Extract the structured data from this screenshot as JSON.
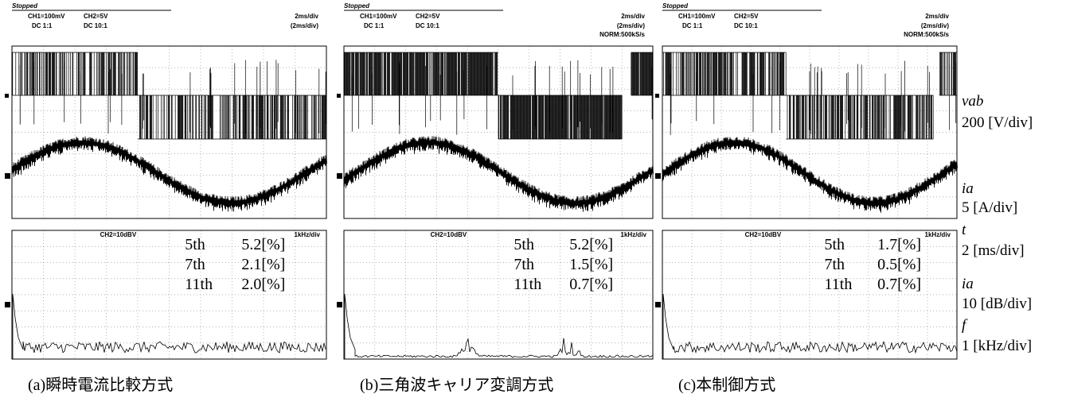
{
  "panels": [
    {
      "caption": "(a)瞬時電流比較方式",
      "scope": {
        "status": "Stopped",
        "ch1": "CH1=100mV",
        "ch1_coupling": "DC 1:1",
        "ch2": "CH2=5V",
        "ch2_coupling": "DC 10:1",
        "timebase": "2ms/div",
        "timebase_zoom": "(2ms/div)"
      },
      "fft": {
        "label": "CH2=10dBV",
        "scale": "1kHz/div",
        "harmonics": [
          {
            "order": "5th",
            "value": "5.2[%]"
          },
          {
            "order": "7th",
            "value": "2.1[%]"
          },
          {
            "order": "11th",
            "value": "2.0[%]"
          }
        ]
      }
    },
    {
      "caption": "(b)三角波キャリア変調方式",
      "scope": {
        "status": "Stopped",
        "ch1": "CH1=100mV",
        "ch1_coupling": "DC 1:1",
        "ch2": "CH2=5V",
        "ch2_coupling": "DC 10:1",
        "timebase": "2ms/div",
        "timebase_zoom": "(2ms/div)",
        "sampling": "NORM:500kS/s"
      },
      "fft": {
        "label": "CH2=10dBV",
        "scale": "1kHz/div",
        "harmonics": [
          {
            "order": "5th",
            "value": "5.2[%]"
          },
          {
            "order": "7th",
            "value": "1.5[%]"
          },
          {
            "order": "11th",
            "value": "0.7[%]"
          }
        ]
      }
    },
    {
      "caption": "(c)本制御方式",
      "scope": {
        "status": "Stopped",
        "ch1": "CH1=100mV",
        "ch1_coupling": "DC 1:1",
        "ch2": "CH2=5V",
        "ch2_coupling": "DC 10:1",
        "timebase": "2ms/div",
        "timebase_zoom": "(2ms/div)",
        "sampling": "NORM:500kS/s"
      },
      "fft": {
        "label": "CH2=10dBV",
        "scale": "1kHz/div",
        "harmonics": [
          {
            "order": "5th",
            "value": "1.7[%]"
          },
          {
            "order": "7th",
            "value": "0.5[%]"
          },
          {
            "order": "11th",
            "value": "0.7[%]"
          }
        ]
      }
    }
  ],
  "legend": {
    "vab": "vab",
    "vab_scale": "200 [V/div]",
    "ia": "ia",
    "ia_scale": "5 [A/div]",
    "t": "t",
    "t_scale": "2 [ms/div]",
    "ia_fft": "ia",
    "ia_fft_scale": "10 [dB/div]",
    "f": "f",
    "f_scale": "1 [kHz/div]"
  }
}
